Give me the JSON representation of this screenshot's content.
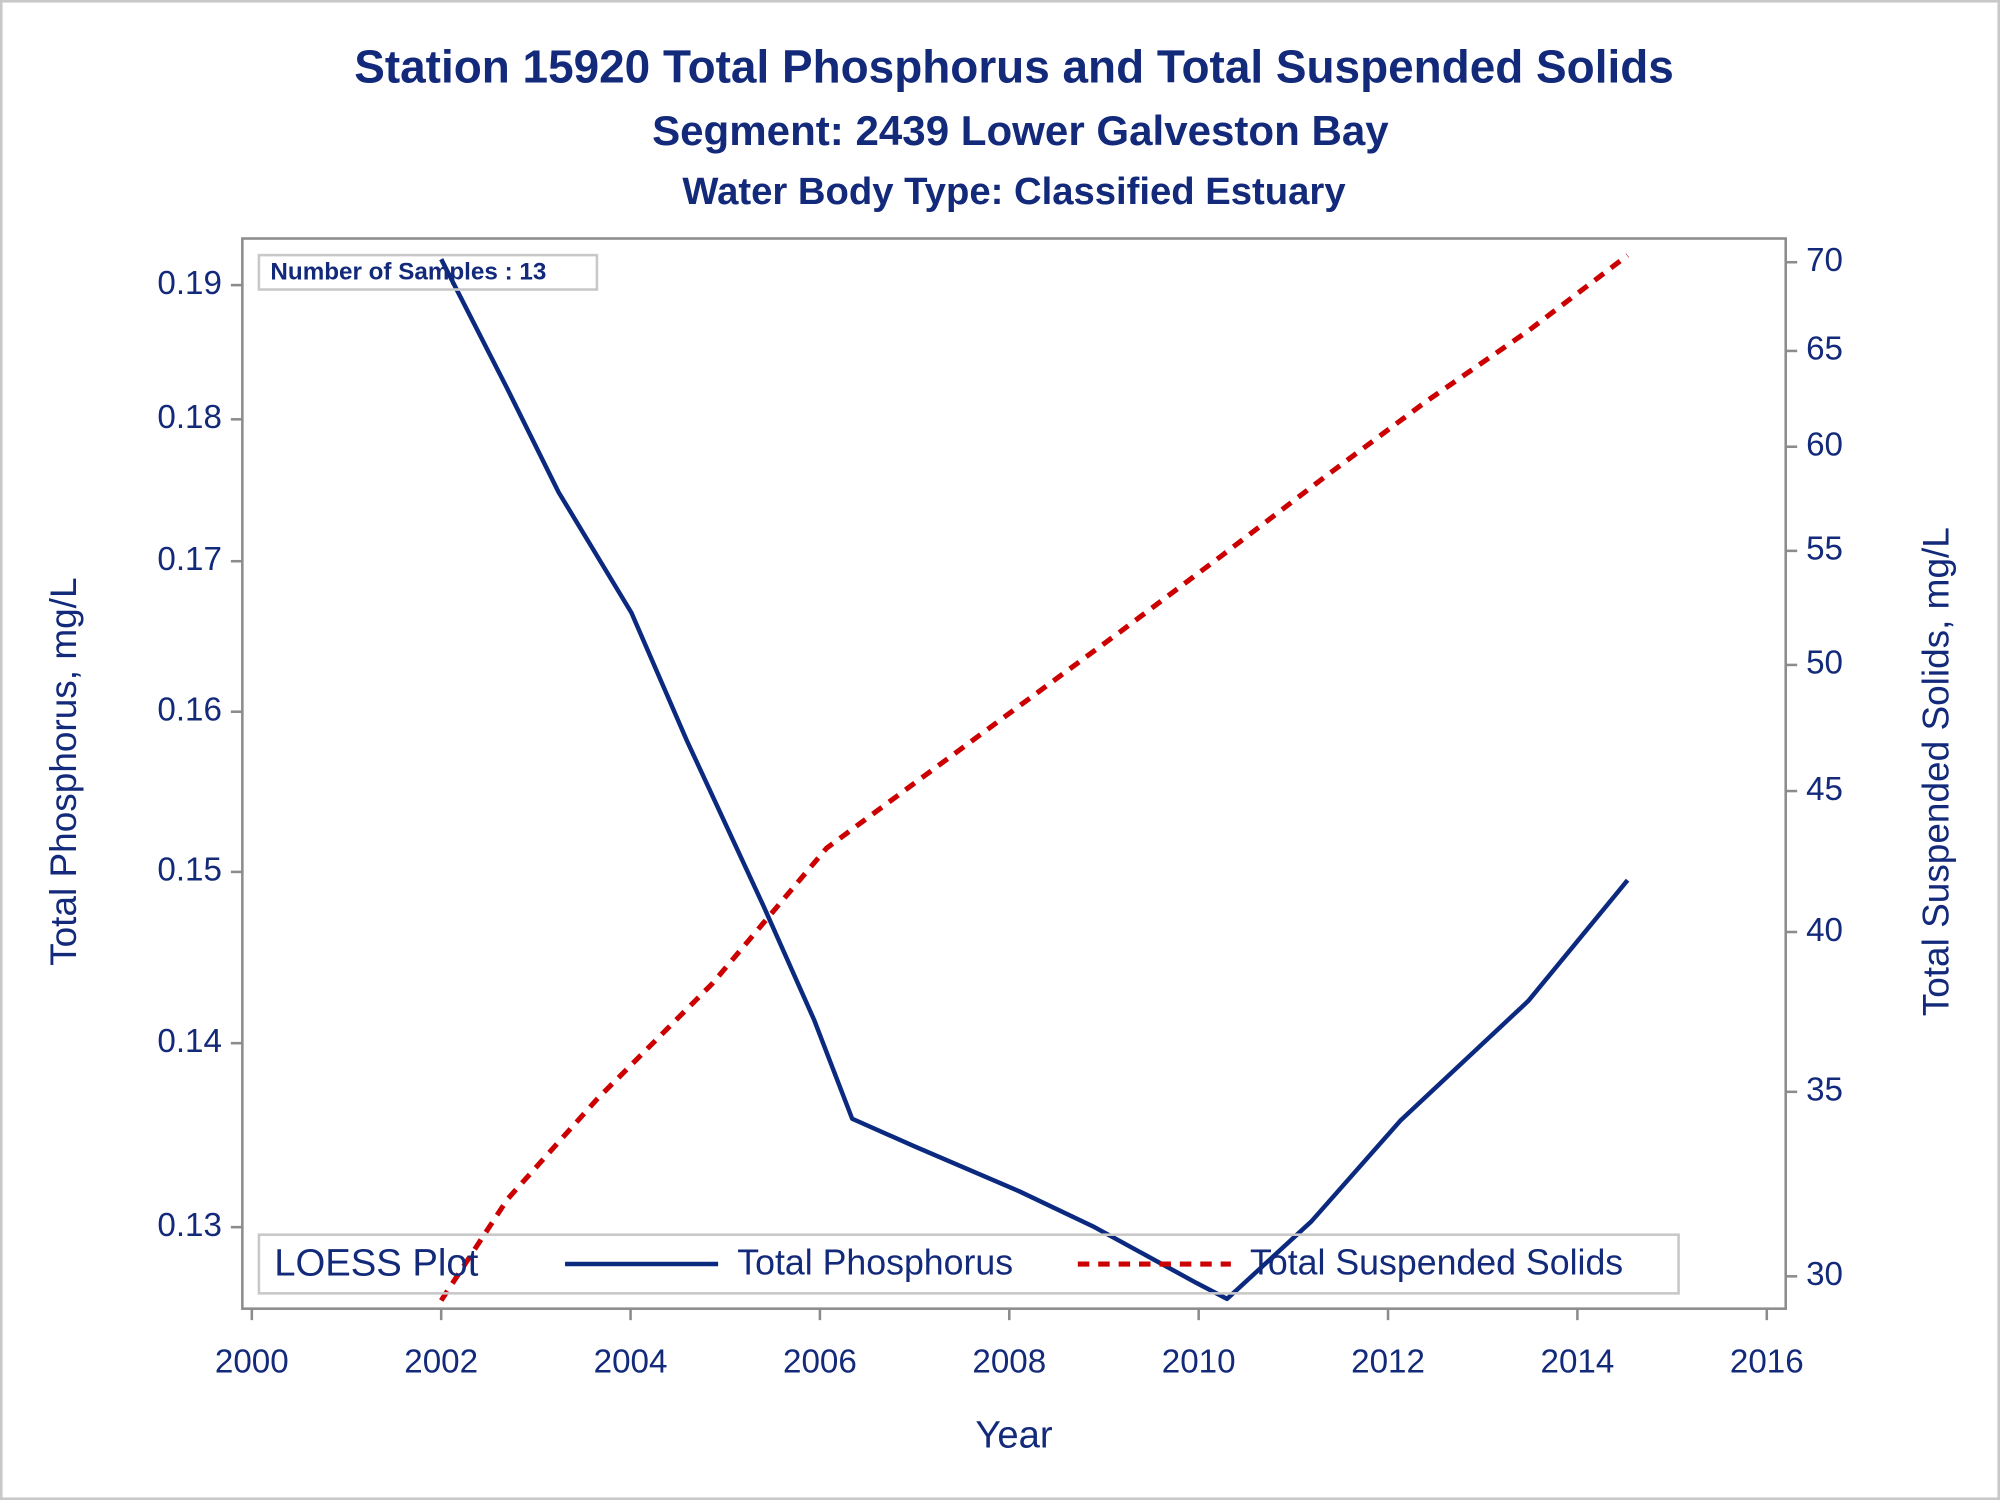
{
  "chart_data": {
    "type": "line",
    "title": "Station 15920  Total Phosphorus and Total Suspended Solids",
    "subtitle": "Segment: 2439  Lower Galveston Bay",
    "subtitle2": "Water Body Type: Classified Estuary",
    "x_label": "Year",
    "y_label": "Total Phosphorus, mg/L",
    "y2_label": "Total Suspended Solids, mg/L",
    "annotation": "Number of Samples : 13",
    "legend_title": "LOESS Plot",
    "legend_position": "bottom",
    "xlim": [
      1999.9,
      2016.2
    ],
    "xticks": [
      2000,
      2002,
      2004,
      2006,
      2008,
      2010,
      2012,
      2014,
      2016
    ],
    "ylim": [
      0.1258,
      0.1936
    ],
    "yticks": [
      0.13,
      0.14,
      0.15,
      0.16,
      0.17,
      0.18,
      0.19
    ],
    "yscale": "log",
    "y2lim": [
      29.2,
      71.4
    ],
    "y2ticks": [
      30,
      35,
      40,
      45,
      50,
      55,
      60,
      65,
      70
    ],
    "y2scale": "log",
    "series": [
      {
        "name": "Total Phosphorus",
        "color": "#0b2a7f",
        "dash": "solid",
        "x": [
          2002.0,
          2002.7,
          2003.24,
          2004.01,
          2004.59,
          2005.4,
          2005.94,
          2006.34,
          2007.0,
          2008.1,
          2008.9,
          2009.98,
          2010.3,
          2011.19,
          2012.13,
          2013.48,
          2014.53
        ],
        "values": [
          0.192,
          0.1822,
          0.1748,
          0.1665,
          0.1582,
          0.148,
          0.1413,
          0.1358,
          0.1343,
          0.1319,
          0.13,
          0.1271,
          0.1263,
          0.1303,
          0.1357,
          0.1424,
          0.1495
        ]
      },
      {
        "name": "Total Suspended Solids",
        "color": "#cc0000",
        "dash": "dashed",
        "axis": "y2",
        "x": [
          2002.0,
          2002.7,
          2003.65,
          2004.86,
          2006.07,
          2007.0,
          2008.1,
          2009.17,
          2010.25,
          2011.33,
          2012.4,
          2013.48,
          2014.53
        ],
        "values": [
          29.4,
          32.0,
          34.8,
          38.3,
          42.9,
          45.3,
          48.3,
          51.4,
          54.8,
          58.5,
          62.3,
          66.1,
          70.4
        ]
      }
    ]
  }
}
